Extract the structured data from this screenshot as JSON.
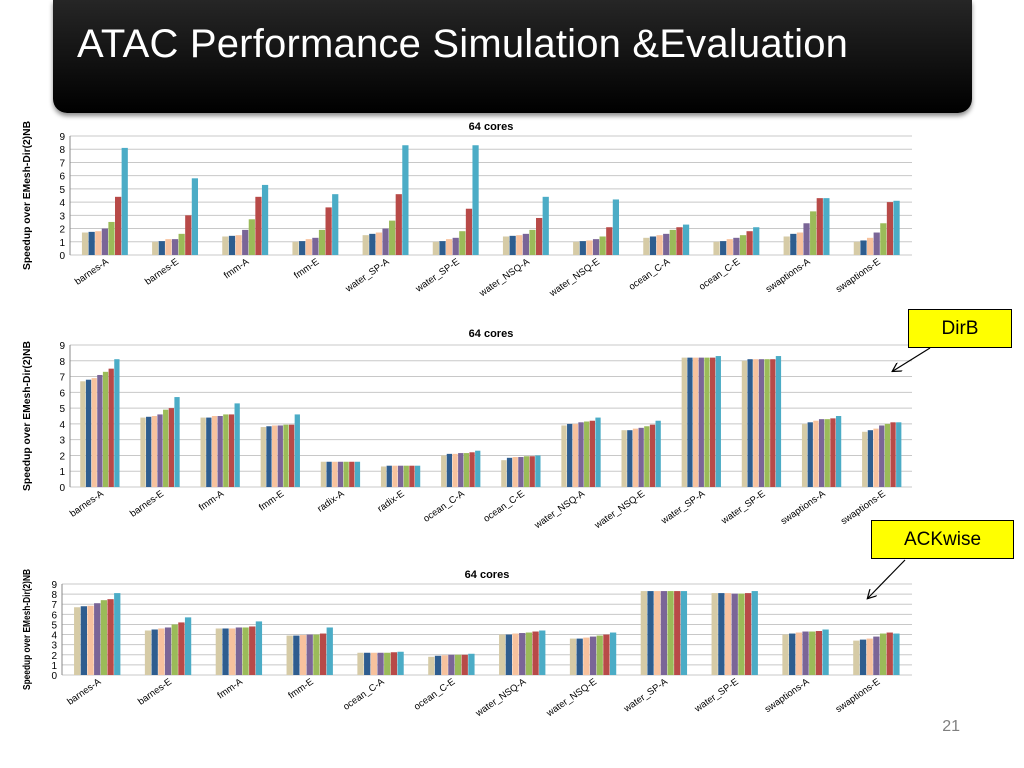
{
  "slide": {
    "title": "ATAC Performance Simulation &Evaluation",
    "page_number": "21"
  },
  "callouts": {
    "dirb": "DirB",
    "ackwise": "ACKwise"
  },
  "colors": {
    "series": [
      "#d6cba6",
      "#2e5d8f",
      "#f7c29e",
      "#7a6597",
      "#9bbb59",
      "#b84a48",
      "#4bacc6"
    ],
    "grid": "#c8c8c8",
    "callout_background": "#ffff00"
  },
  "chart_data": [
    {
      "type": "bar",
      "title": "64 cores",
      "ylabel": "Speedup over EMesh-Dir(2)NB",
      "ylim": [
        0,
        9
      ],
      "yticks": [
        0,
        1,
        2,
        3,
        4,
        5,
        6,
        7,
        8,
        9
      ],
      "grid": true,
      "legend": "none",
      "categories": [
        "barnes-A",
        "barnes-E",
        "fmm-A",
        "fmm-E",
        "water_SP-A",
        "water_SP-E",
        "water_NSQ-A",
        "water_NSQ-E",
        "ocean_C-A",
        "ocean_C-E",
        "swaptions-A",
        "swaptions-E"
      ],
      "series": [
        {
          "values": [
            1.7,
            1.0,
            1.4,
            1.0,
            1.5,
            1.0,
            1.4,
            1.0,
            1.3,
            1.0,
            1.4,
            1.0
          ]
        },
        {
          "values": [
            1.75,
            1.05,
            1.45,
            1.05,
            1.6,
            1.05,
            1.45,
            1.05,
            1.4,
            1.05,
            1.6,
            1.1
          ]
        },
        {
          "values": [
            1.8,
            1.2,
            1.5,
            1.2,
            1.7,
            1.2,
            1.5,
            1.1,
            1.5,
            1.2,
            1.7,
            1.3
          ]
        },
        {
          "values": [
            2.0,
            1.2,
            1.9,
            1.3,
            2.0,
            1.3,
            1.6,
            1.2,
            1.6,
            1.3,
            2.4,
            1.7
          ]
        },
        {
          "values": [
            2.5,
            1.6,
            2.7,
            1.9,
            2.6,
            1.8,
            1.9,
            1.4,
            1.9,
            1.5,
            3.3,
            2.4
          ]
        },
        {
          "values": [
            4.4,
            3.0,
            4.4,
            3.6,
            4.6,
            3.5,
            2.8,
            2.1,
            2.1,
            1.8,
            4.3,
            4.0
          ]
        },
        {
          "values": [
            8.1,
            5.8,
            5.3,
            4.6,
            8.3,
            8.3,
            4.4,
            4.2,
            2.3,
            2.1,
            4.3,
            4.1
          ]
        }
      ]
    },
    {
      "type": "bar",
      "title": "64 cores",
      "ylabel": "Speedup over EMesh-Dir(2)NB",
      "ylim": [
        0,
        9
      ],
      "yticks": [
        0,
        1,
        2,
        3,
        4,
        5,
        6,
        7,
        8,
        9
      ],
      "grid": true,
      "legend": "none",
      "categories": [
        "barnes-A",
        "barnes-E",
        "fmm-A",
        "fmm-E",
        "radix-A",
        "radix-E",
        "ocean_C-A",
        "ocean_C-E",
        "water_NSQ-A",
        "water_NSQ-E",
        "water_SP-A",
        "water_SP-E",
        "swaptions-A",
        "swaptions-E"
      ],
      "series": [
        {
          "values": [
            6.7,
            4.4,
            4.4,
            3.8,
            1.6,
            1.3,
            2.0,
            1.7,
            3.9,
            3.6,
            8.2,
            8.0,
            4.0,
            3.5
          ]
        },
        {
          "values": [
            6.8,
            4.45,
            4.4,
            3.85,
            1.6,
            1.35,
            2.1,
            1.85,
            4.0,
            3.6,
            8.2,
            8.1,
            4.1,
            3.6
          ]
        },
        {
          "values": [
            6.9,
            4.5,
            4.5,
            3.9,
            1.6,
            1.35,
            2.1,
            1.9,
            4.0,
            3.7,
            8.2,
            8.1,
            4.2,
            3.7
          ]
        },
        {
          "values": [
            7.1,
            4.6,
            4.5,
            3.9,
            1.6,
            1.35,
            2.15,
            1.9,
            4.1,
            3.75,
            8.2,
            8.1,
            4.3,
            3.9
          ]
        },
        {
          "values": [
            7.3,
            4.9,
            4.6,
            3.95,
            1.6,
            1.35,
            2.15,
            1.95,
            4.15,
            3.85,
            8.2,
            8.1,
            4.3,
            4.0
          ]
        },
        {
          "values": [
            7.5,
            5.0,
            4.6,
            3.95,
            1.6,
            1.35,
            2.2,
            1.95,
            4.2,
            3.95,
            8.2,
            8.1,
            4.35,
            4.1
          ]
        },
        {
          "values": [
            8.1,
            5.7,
            5.3,
            4.6,
            1.6,
            1.35,
            2.3,
            2.0,
            4.4,
            4.2,
            8.3,
            8.3,
            4.5,
            4.1
          ]
        }
      ]
    },
    {
      "type": "bar",
      "title": "64 cores",
      "ylabel": "Speedup over EMesh-Dir(2)NB",
      "ylim": [
        0,
        9
      ],
      "yticks": [
        0,
        1,
        2,
        3,
        4,
        5,
        6,
        7,
        8,
        9
      ],
      "grid": true,
      "legend": "none",
      "categories": [
        "barnes-A",
        "barnes-E",
        "fmm-A",
        "fmm-E",
        "ocean_C-A",
        "ocean_C-E",
        "water_NSQ-A",
        "water_NSQ-E",
        "water_SP-A",
        "water_SP-E",
        "swaptions-A",
        "swaptions-E"
      ],
      "series": [
        {
          "values": [
            6.7,
            4.4,
            4.6,
            3.9,
            2.2,
            1.8,
            4.0,
            3.6,
            8.3,
            8.1,
            4.0,
            3.4
          ]
        },
        {
          "values": [
            6.8,
            4.5,
            4.6,
            3.9,
            2.2,
            1.9,
            4.0,
            3.6,
            8.3,
            8.1,
            4.1,
            3.5
          ]
        },
        {
          "values": [
            6.85,
            4.6,
            4.6,
            3.95,
            2.2,
            1.95,
            4.1,
            3.7,
            8.3,
            8.1,
            4.2,
            3.6
          ]
        },
        {
          "values": [
            7.1,
            4.7,
            4.7,
            4.0,
            2.2,
            2.0,
            4.15,
            3.8,
            8.3,
            8.05,
            4.3,
            3.8
          ]
        },
        {
          "values": [
            7.4,
            5.0,
            4.7,
            4.0,
            2.2,
            2.0,
            4.2,
            3.9,
            8.3,
            8.05,
            4.3,
            4.1
          ]
        },
        {
          "values": [
            7.5,
            5.2,
            4.8,
            4.1,
            2.25,
            2.0,
            4.3,
            4.0,
            8.3,
            8.1,
            4.35,
            4.2
          ]
        },
        {
          "values": [
            8.1,
            5.7,
            5.3,
            4.7,
            2.3,
            2.1,
            4.4,
            4.2,
            8.3,
            8.3,
            4.5,
            4.1
          ]
        }
      ]
    }
  ]
}
